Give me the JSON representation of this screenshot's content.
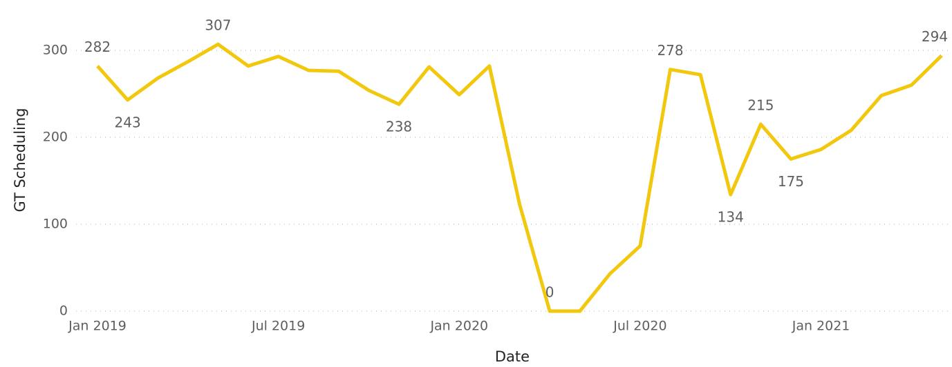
{
  "chart_data": {
    "type": "line",
    "x_label": "Date",
    "y_label": "GT Scheduling",
    "x": [
      "2019-01",
      "2019-02",
      "2019-03",
      "2019-04",
      "2019-05",
      "2019-06",
      "2019-07",
      "2019-08",
      "2019-09",
      "2019-10",
      "2019-11",
      "2019-12",
      "2020-01",
      "2020-02",
      "2020-03",
      "2020-04",
      "2020-05",
      "2020-06",
      "2020-07",
      "2020-08",
      "2020-09",
      "2020-10",
      "2020-11",
      "2020-12",
      "2021-01",
      "2021-02",
      "2021-03",
      "2021-04",
      "2021-05"
    ],
    "series": [
      {
        "name": "GT Scheduling",
        "color": "#f2c80f",
        "values": [
          282,
          243,
          268,
          287,
          307,
          282,
          293,
          277,
          276,
          254,
          238,
          281,
          249,
          282,
          123,
          0,
          0,
          43,
          75,
          278,
          272,
          134,
          215,
          175,
          186,
          208,
          248,
          260,
          294
        ],
        "value_labels": [
          "282",
          "243",
          null,
          null,
          "307",
          null,
          null,
          null,
          null,
          null,
          "238",
          null,
          null,
          null,
          null,
          "0",
          null,
          null,
          null,
          "278",
          null,
          "134",
          "215",
          "175",
          null,
          null,
          null,
          null,
          "294"
        ]
      }
    ],
    "xticks": [
      {
        "value": "2019-01",
        "label": "Jan 2019"
      },
      {
        "value": "2019-07",
        "label": "Jul 2019"
      },
      {
        "value": "2020-01",
        "label": "Jan 2020"
      },
      {
        "value": "2020-07",
        "label": "Jul 2020"
      },
      {
        "value": "2021-01",
        "label": "Jan 2021"
      }
    ],
    "ylim": [
      0,
      330
    ],
    "yticks": [
      0,
      100,
      200,
      300
    ],
    "grid": true
  }
}
